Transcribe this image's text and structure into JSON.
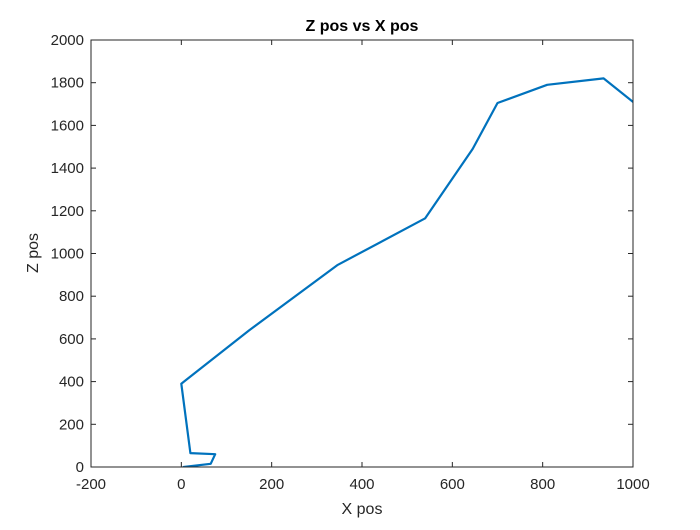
{
  "chart_data": {
    "type": "line",
    "title": "Z pos vs X pos",
    "xlabel": "X pos",
    "ylabel": "Z pos",
    "xlim": [
      -200,
      1000
    ],
    "ylim": [
      0,
      2000
    ],
    "x_ticks": [
      -200,
      0,
      200,
      400,
      600,
      800,
      1000
    ],
    "y_ticks": [
      0,
      200,
      400,
      600,
      800,
      1000,
      1200,
      1400,
      1600,
      1800,
      2000
    ],
    "grid": false,
    "legend": "none",
    "series": [
      {
        "color": "#0072BD",
        "x": [
          5,
          65,
          75,
          20,
          0,
          150,
          345,
          540,
          645,
          700,
          810,
          935,
          1000
        ],
        "y": [
          0,
          15,
          60,
          65,
          390,
          640,
          945,
          1165,
          1490,
          1705,
          1790,
          1820,
          1710
        ]
      }
    ]
  }
}
